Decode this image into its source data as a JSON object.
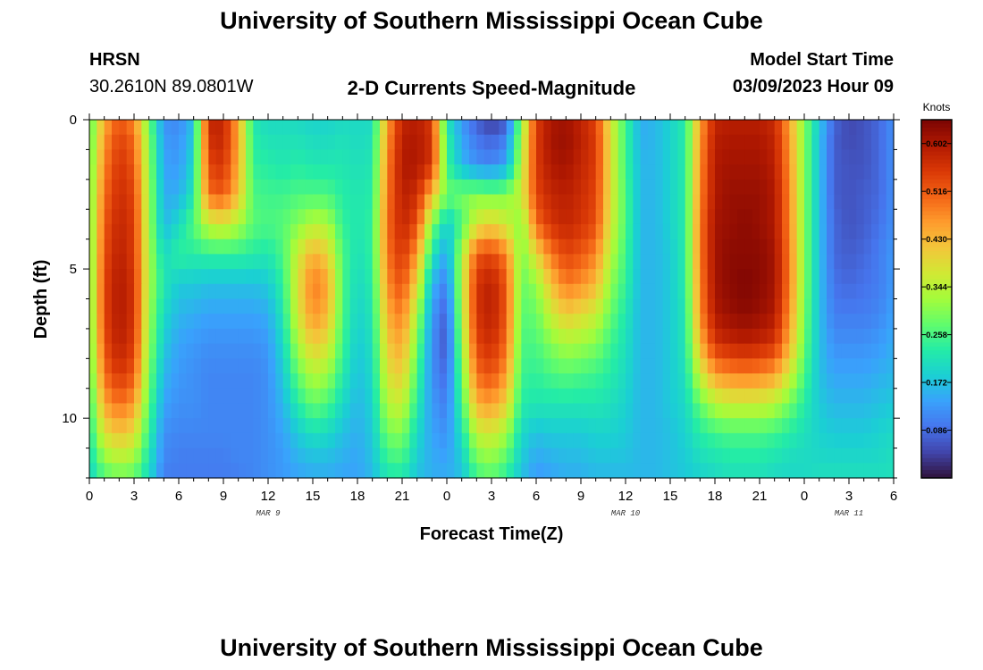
{
  "header": {
    "title": "University of Southern Mississippi Ocean Cube",
    "station": "HRSN",
    "location": "30.2610N  89.0801W",
    "plot_title": "2-D Currents Speed-Magnitude",
    "model_label": "Model Start Time",
    "model_time": "03/09/2023 Hour 09"
  },
  "footer": {
    "title": "University of Southern Mississippi Ocean Cube"
  },
  "colors": {
    "colormap": [
      "#30123b",
      "#4145ab",
      "#4675ed",
      "#39a2fc",
      "#1bcfd4",
      "#24eca6",
      "#61fc6c",
      "#a4fc3b",
      "#d1e834",
      "#f3c63a",
      "#fe9b2d",
      "#f36315",
      "#d93806",
      "#b11901",
      "#7a0403"
    ]
  },
  "chart_data": {
    "type": "heatmap",
    "title": "2-D Currents Speed-Magnitude",
    "xlabel": "Forecast Time(Z)",
    "ylabel": "Depth (ft)",
    "x_tick_labels": [
      "0",
      "3",
      "6",
      "9",
      "12",
      "15",
      "18",
      "21",
      "0",
      "3",
      "6",
      "9",
      "12",
      "15",
      "18",
      "21",
      "0",
      "3",
      "6"
    ],
    "date_labels": [
      {
        "text": "MAR 9",
        "hour": 12
      },
      {
        "text": "MAR 10",
        "hour": 36
      },
      {
        "text": "MAR 11",
        "hour": 51
      }
    ],
    "xlim": [
      0,
      54
    ],
    "ylim": [
      0,
      12
    ],
    "y_tick_labels": [
      "0",
      "5",
      "10"
    ],
    "y_tick_values": [
      0,
      5,
      10
    ],
    "colorbar": {
      "label": "Knots",
      "min": 0,
      "max": 0.645,
      "tick_values": [
        0.602,
        0.516,
        0.43,
        0.344,
        0.258,
        0.172,
        0.086
      ],
      "tick_labels": [
        "0.602",
        "0.516",
        "0.430",
        "0.344",
        "0.258",
        "0.172",
        "0.086"
      ]
    },
    "depth_levels_ft": [
      0.0,
      0.5,
      1.5,
      2.5,
      3.5,
      4.5,
      5.5,
      6.5,
      7.5,
      8.5,
      9.5,
      10.5,
      11.5,
      12.0
    ],
    "hours": [
      0,
      1,
      2,
      3,
      4,
      5,
      6,
      7,
      8,
      9,
      10,
      11,
      12,
      13,
      14,
      15,
      16,
      17,
      18,
      19,
      20,
      21,
      22,
      23,
      24,
      25,
      26,
      27,
      28,
      29,
      30,
      31,
      32,
      33,
      34,
      35,
      36,
      37,
      38,
      39,
      40,
      41,
      42,
      43,
      44,
      45,
      46,
      47,
      48,
      49,
      50,
      51,
      52,
      53,
      54
    ],
    "speed_knots": [
      [
        0.26,
        0.44,
        0.52,
        0.47,
        0.28,
        0.12,
        0.11,
        0.17,
        0.58,
        0.58,
        0.44,
        0.22,
        0.2,
        0.2,
        0.2,
        0.19,
        0.19,
        0.2,
        0.2,
        0.2,
        0.45,
        0.58,
        0.59,
        0.55,
        0.21,
        0.13,
        0.07,
        0.03,
        0.06,
        0.3,
        0.55,
        0.6,
        0.61,
        0.58,
        0.54,
        0.37,
        0.25,
        0.15,
        0.16,
        0.19,
        0.23,
        0.45,
        0.58,
        0.59,
        0.59,
        0.59,
        0.57,
        0.45,
        0.3,
        0.18,
        0.08,
        0.05,
        0.06,
        0.08,
        0.12
      ],
      [
        0.26,
        0.46,
        0.54,
        0.5,
        0.3,
        0.13,
        0.12,
        0.18,
        0.57,
        0.58,
        0.45,
        0.23,
        0.21,
        0.21,
        0.21,
        0.2,
        0.2,
        0.21,
        0.2,
        0.21,
        0.46,
        0.59,
        0.6,
        0.56,
        0.24,
        0.14,
        0.09,
        0.07,
        0.1,
        0.32,
        0.55,
        0.61,
        0.62,
        0.59,
        0.55,
        0.38,
        0.25,
        0.15,
        0.16,
        0.19,
        0.23,
        0.46,
        0.59,
        0.6,
        0.6,
        0.6,
        0.58,
        0.46,
        0.3,
        0.17,
        0.07,
        0.05,
        0.06,
        0.08,
        0.12
      ],
      [
        0.27,
        0.48,
        0.56,
        0.52,
        0.31,
        0.14,
        0.13,
        0.2,
        0.54,
        0.56,
        0.44,
        0.24,
        0.23,
        0.22,
        0.23,
        0.22,
        0.22,
        0.22,
        0.21,
        0.22,
        0.48,
        0.6,
        0.6,
        0.56,
        0.25,
        0.16,
        0.12,
        0.11,
        0.14,
        0.34,
        0.55,
        0.6,
        0.61,
        0.58,
        0.55,
        0.38,
        0.25,
        0.16,
        0.16,
        0.19,
        0.23,
        0.47,
        0.6,
        0.61,
        0.61,
        0.61,
        0.59,
        0.47,
        0.3,
        0.17,
        0.07,
        0.06,
        0.06,
        0.08,
        0.12
      ],
      [
        0.28,
        0.5,
        0.57,
        0.54,
        0.32,
        0.15,
        0.15,
        0.22,
        0.5,
        0.52,
        0.42,
        0.26,
        0.25,
        0.25,
        0.26,
        0.26,
        0.26,
        0.23,
        0.22,
        0.23,
        0.49,
        0.59,
        0.57,
        0.43,
        0.28,
        0.29,
        0.3,
        0.29,
        0.3,
        0.36,
        0.54,
        0.58,
        0.59,
        0.57,
        0.54,
        0.38,
        0.26,
        0.16,
        0.16,
        0.19,
        0.23,
        0.48,
        0.6,
        0.62,
        0.62,
        0.62,
        0.6,
        0.48,
        0.3,
        0.17,
        0.07,
        0.06,
        0.07,
        0.08,
        0.12
      ],
      [
        0.28,
        0.52,
        0.58,
        0.55,
        0.32,
        0.16,
        0.2,
        0.27,
        0.35,
        0.37,
        0.33,
        0.27,
        0.26,
        0.27,
        0.3,
        0.34,
        0.33,
        0.24,
        0.22,
        0.24,
        0.5,
        0.58,
        0.53,
        0.3,
        0.18,
        0.26,
        0.37,
        0.4,
        0.36,
        0.3,
        0.5,
        0.56,
        0.58,
        0.56,
        0.53,
        0.37,
        0.26,
        0.16,
        0.16,
        0.19,
        0.23,
        0.49,
        0.61,
        0.62,
        0.63,
        0.62,
        0.6,
        0.48,
        0.3,
        0.17,
        0.08,
        0.06,
        0.07,
        0.09,
        0.12
      ],
      [
        0.28,
        0.53,
        0.59,
        0.55,
        0.33,
        0.2,
        0.24,
        0.23,
        0.24,
        0.24,
        0.24,
        0.23,
        0.22,
        0.26,
        0.36,
        0.44,
        0.4,
        0.26,
        0.21,
        0.24,
        0.49,
        0.56,
        0.46,
        0.22,
        0.14,
        0.33,
        0.52,
        0.54,
        0.48,
        0.29,
        0.39,
        0.49,
        0.54,
        0.52,
        0.48,
        0.34,
        0.25,
        0.16,
        0.16,
        0.18,
        0.23,
        0.49,
        0.61,
        0.63,
        0.63,
        0.63,
        0.61,
        0.49,
        0.3,
        0.17,
        0.08,
        0.07,
        0.08,
        0.1,
        0.13
      ],
      [
        0.28,
        0.54,
        0.6,
        0.56,
        0.33,
        0.22,
        0.18,
        0.18,
        0.17,
        0.17,
        0.17,
        0.17,
        0.18,
        0.24,
        0.38,
        0.49,
        0.45,
        0.26,
        0.2,
        0.23,
        0.47,
        0.53,
        0.39,
        0.16,
        0.1,
        0.34,
        0.56,
        0.59,
        0.52,
        0.28,
        0.31,
        0.42,
        0.49,
        0.47,
        0.43,
        0.31,
        0.24,
        0.16,
        0.16,
        0.18,
        0.23,
        0.48,
        0.61,
        0.63,
        0.64,
        0.63,
        0.61,
        0.49,
        0.3,
        0.17,
        0.09,
        0.08,
        0.09,
        0.1,
        0.13
      ],
      [
        0.28,
        0.54,
        0.6,
        0.56,
        0.32,
        0.2,
        0.16,
        0.15,
        0.14,
        0.14,
        0.14,
        0.14,
        0.15,
        0.22,
        0.37,
        0.47,
        0.43,
        0.26,
        0.19,
        0.22,
        0.44,
        0.49,
        0.33,
        0.13,
        0.07,
        0.33,
        0.56,
        0.59,
        0.52,
        0.27,
        0.28,
        0.36,
        0.41,
        0.39,
        0.36,
        0.28,
        0.22,
        0.16,
        0.16,
        0.18,
        0.22,
        0.47,
        0.6,
        0.62,
        0.63,
        0.62,
        0.6,
        0.47,
        0.29,
        0.17,
        0.1,
        0.1,
        0.1,
        0.11,
        0.14
      ],
      [
        0.27,
        0.53,
        0.59,
        0.55,
        0.31,
        0.18,
        0.14,
        0.13,
        0.12,
        0.12,
        0.12,
        0.12,
        0.13,
        0.2,
        0.33,
        0.41,
        0.38,
        0.25,
        0.18,
        0.21,
        0.41,
        0.45,
        0.29,
        0.12,
        0.06,
        0.31,
        0.54,
        0.57,
        0.5,
        0.26,
        0.26,
        0.3,
        0.33,
        0.32,
        0.3,
        0.25,
        0.21,
        0.16,
        0.16,
        0.18,
        0.22,
        0.43,
        0.56,
        0.58,
        0.59,
        0.58,
        0.56,
        0.44,
        0.28,
        0.17,
        0.12,
        0.12,
        0.12,
        0.13,
        0.15
      ],
      [
        0.26,
        0.5,
        0.56,
        0.52,
        0.29,
        0.16,
        0.13,
        0.12,
        0.11,
        0.11,
        0.11,
        0.11,
        0.12,
        0.18,
        0.28,
        0.34,
        0.32,
        0.23,
        0.17,
        0.2,
        0.38,
        0.41,
        0.26,
        0.12,
        0.08,
        0.28,
        0.5,
        0.53,
        0.46,
        0.25,
        0.24,
        0.26,
        0.27,
        0.26,
        0.25,
        0.23,
        0.2,
        0.16,
        0.16,
        0.18,
        0.21,
        0.36,
        0.46,
        0.48,
        0.49,
        0.48,
        0.46,
        0.37,
        0.26,
        0.17,
        0.14,
        0.14,
        0.14,
        0.15,
        0.16
      ],
      [
        0.24,
        0.45,
        0.5,
        0.46,
        0.27,
        0.14,
        0.12,
        0.12,
        0.11,
        0.11,
        0.11,
        0.11,
        0.12,
        0.16,
        0.23,
        0.28,
        0.26,
        0.2,
        0.16,
        0.19,
        0.34,
        0.36,
        0.23,
        0.13,
        0.1,
        0.25,
        0.44,
        0.46,
        0.4,
        0.23,
        0.22,
        0.22,
        0.22,
        0.22,
        0.22,
        0.21,
        0.19,
        0.16,
        0.16,
        0.18,
        0.2,
        0.28,
        0.34,
        0.36,
        0.36,
        0.36,
        0.34,
        0.29,
        0.23,
        0.18,
        0.16,
        0.16,
        0.16,
        0.17,
        0.18
      ],
      [
        0.22,
        0.38,
        0.42,
        0.39,
        0.24,
        0.12,
        0.11,
        0.11,
        0.11,
        0.11,
        0.11,
        0.11,
        0.12,
        0.14,
        0.18,
        0.21,
        0.2,
        0.17,
        0.15,
        0.18,
        0.29,
        0.3,
        0.2,
        0.14,
        0.12,
        0.21,
        0.35,
        0.37,
        0.32,
        0.2,
        0.17,
        0.18,
        0.18,
        0.18,
        0.19,
        0.19,
        0.18,
        0.16,
        0.16,
        0.17,
        0.19,
        0.23,
        0.25,
        0.26,
        0.26,
        0.26,
        0.25,
        0.23,
        0.21,
        0.19,
        0.18,
        0.18,
        0.18,
        0.19,
        0.2
      ],
      [
        0.2,
        0.3,
        0.33,
        0.31,
        0.21,
        0.11,
        0.1,
        0.1,
        0.1,
        0.1,
        0.11,
        0.11,
        0.12,
        0.13,
        0.15,
        0.16,
        0.16,
        0.15,
        0.14,
        0.17,
        0.24,
        0.25,
        0.18,
        0.15,
        0.14,
        0.18,
        0.28,
        0.3,
        0.26,
        0.18,
        0.14,
        0.15,
        0.16,
        0.16,
        0.17,
        0.17,
        0.17,
        0.16,
        0.16,
        0.17,
        0.18,
        0.2,
        0.21,
        0.22,
        0.22,
        0.22,
        0.21,
        0.2,
        0.2,
        0.2,
        0.2,
        0.2,
        0.2,
        0.2,
        0.21
      ],
      [
        0.19,
        0.26,
        0.28,
        0.27,
        0.2,
        0.1,
        0.1,
        0.1,
        0.1,
        0.1,
        0.1,
        0.11,
        0.12,
        0.13,
        0.14,
        0.15,
        0.15,
        0.14,
        0.14,
        0.16,
        0.22,
        0.22,
        0.17,
        0.15,
        0.15,
        0.17,
        0.25,
        0.27,
        0.23,
        0.17,
        0.13,
        0.14,
        0.15,
        0.15,
        0.16,
        0.16,
        0.16,
        0.16,
        0.16,
        0.17,
        0.18,
        0.19,
        0.2,
        0.21,
        0.21,
        0.21,
        0.2,
        0.2,
        0.2,
        0.21,
        0.21,
        0.21,
        0.21,
        0.21,
        0.21
      ]
    ]
  }
}
